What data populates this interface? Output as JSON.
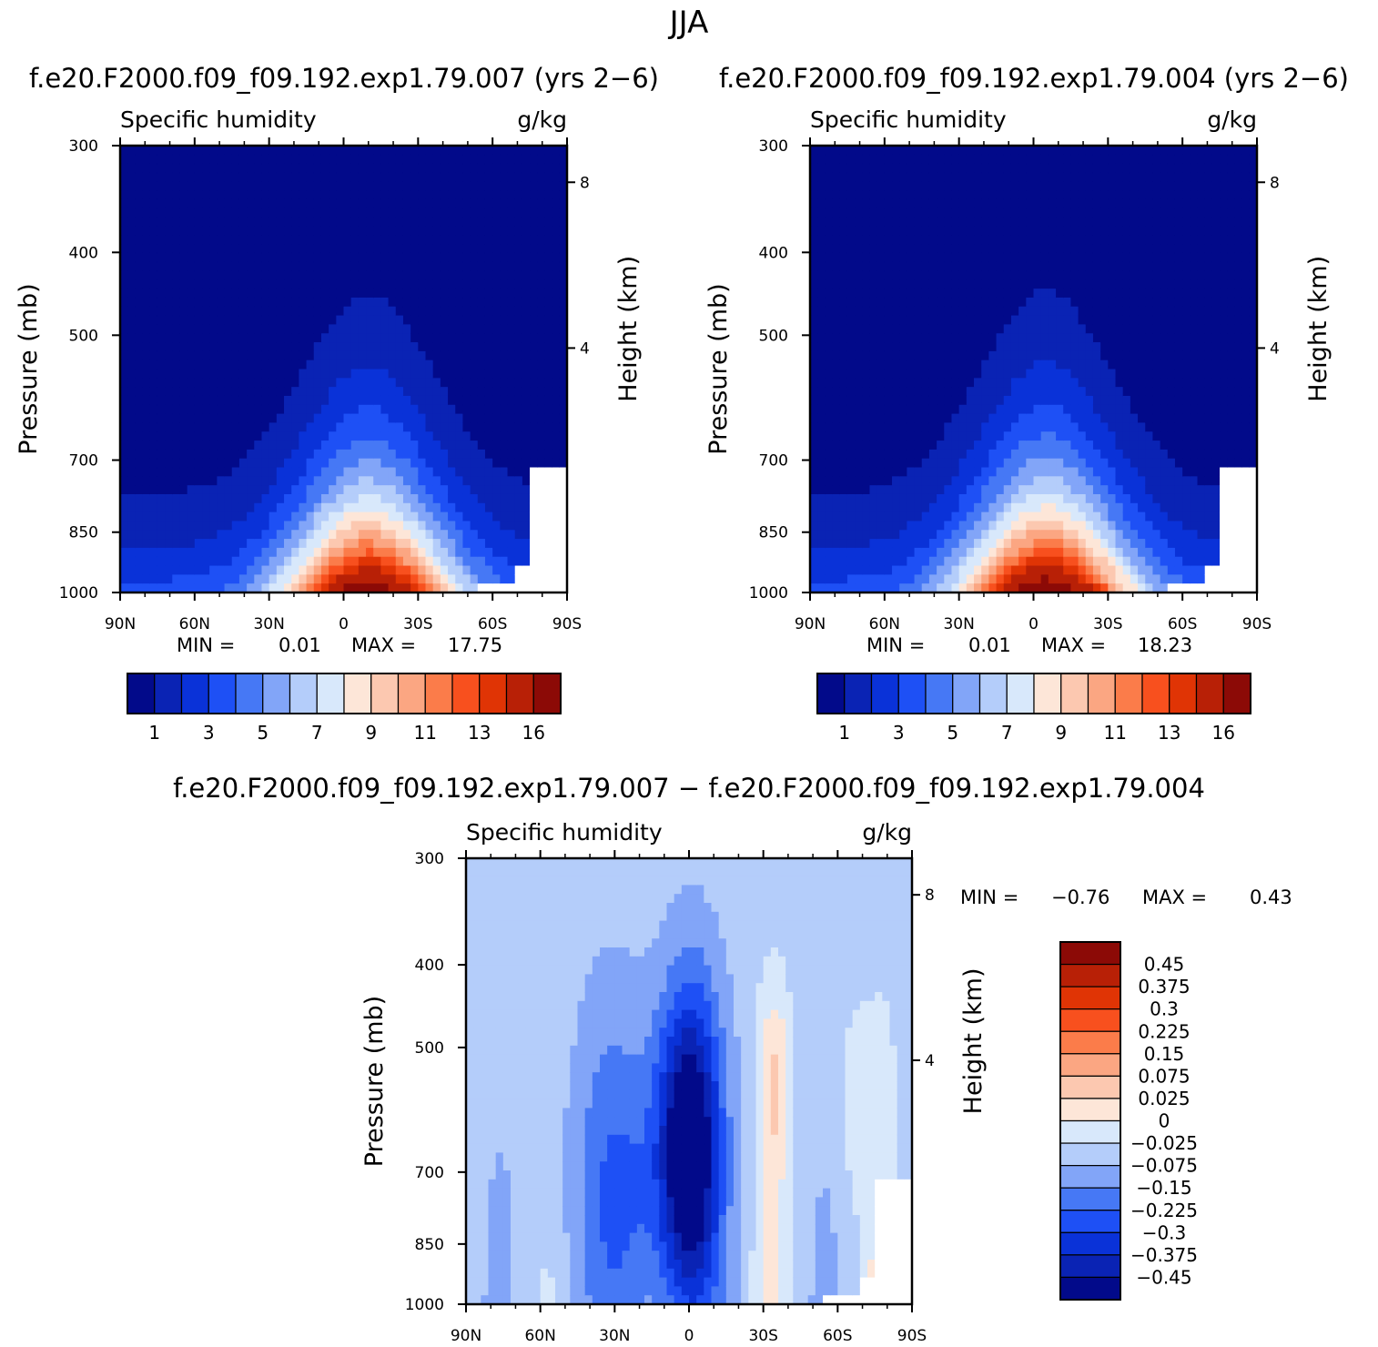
{
  "figure": {
    "season_title": "JJA"
  },
  "chart_data": [
    {
      "id": "panel_a",
      "type": "heatmap",
      "title": "f.e20.F2000.f09_f09.192.exp1.79.007 (yrs 2−6)",
      "left_label": "Specific humidity",
      "right_label": "g/kg",
      "xlabel": "",
      "ylabel": "Pressure (mb)",
      "y2label": "Height (km)",
      "x_ticks": [
        "90N",
        "60N",
        "30N",
        "0",
        "30S",
        "60S",
        "90S"
      ],
      "x_range": [
        90,
        -90
      ],
      "y_ticks": [
        "300",
        "400",
        "500",
        "700",
        "850",
        "1000"
      ],
      "y_tick_values": [
        300,
        400,
        500,
        700,
        850,
        1000
      ],
      "y2_ticks": [
        "8",
        "4"
      ],
      "min_label": "MIN =",
      "min_value": "0.01",
      "max_label": "MAX =",
      "max_value": "17.75",
      "peak_value": 17.75,
      "peak_lat": -10,
      "colorbar_labels": [
        "1",
        "3",
        "5",
        "7",
        "9",
        "11",
        "13",
        "16"
      ]
    },
    {
      "id": "panel_b",
      "type": "heatmap",
      "title": "f.e20.F2000.f09_f09.192.exp1.79.004 (yrs 2−6)",
      "left_label": "Specific humidity",
      "right_label": "g/kg",
      "xlabel": "",
      "ylabel": "Pressure (mb)",
      "y2label": "Height (km)",
      "x_ticks": [
        "90N",
        "60N",
        "30N",
        "0",
        "30S",
        "60S",
        "90S"
      ],
      "x_range": [
        90,
        -90
      ],
      "y_ticks": [
        "300",
        "400",
        "500",
        "700",
        "850",
        "1000"
      ],
      "y_tick_values": [
        300,
        400,
        500,
        700,
        850,
        1000
      ],
      "y2_ticks": [
        "8",
        "4"
      ],
      "min_label": "MIN =",
      "min_value": "0.01",
      "max_label": "MAX =",
      "max_value": "18.23",
      "peak_value": 18.23,
      "peak_lat": -5,
      "colorbar_labels": [
        "1",
        "3",
        "5",
        "7",
        "9",
        "11",
        "13",
        "16"
      ]
    },
    {
      "id": "panel_diff",
      "type": "heatmap",
      "title": "f.e20.F2000.f09_f09.192.exp1.79.007 − f.e20.F2000.f09_f09.192.exp1.79.004",
      "left_label": "Specific humidity",
      "right_label": "g/kg",
      "xlabel": "",
      "ylabel": "Pressure (mb)",
      "y2label": "Height (km)",
      "x_ticks": [
        "90N",
        "60N",
        "30N",
        "0",
        "30S",
        "60S",
        "90S"
      ],
      "x_range": [
        90,
        -90
      ],
      "y_ticks": [
        "300",
        "400",
        "500",
        "700",
        "850",
        "1000"
      ],
      "y_tick_values": [
        300,
        400,
        500,
        700,
        850,
        1000
      ],
      "y2_ticks": [
        "8",
        "4"
      ],
      "min_label": "MIN =",
      "min_value": "−0.76",
      "max_label": "MAX =",
      "max_value": "0.43",
      "colorbar_labels": [
        "0.45",
        "0.375",
        "0.3",
        "0.225",
        "0.15",
        "0.075",
        "0.025",
        "0",
        "−0.025",
        "−0.075",
        "−0.15",
        "−0.225",
        "−0.3",
        "−0.375",
        "−0.45"
      ]
    }
  ],
  "palette": {
    "q_levels": [
      "#020a8a",
      "#0a23b4",
      "#0a32d8",
      "#1e50f5",
      "#4678f5",
      "#82a5f8",
      "#b4cdfa",
      "#d8e8fb",
      "#fde6d8",
      "#fcc8b0",
      "#fba682",
      "#fb7c4a",
      "#f8501e",
      "#e03405",
      "#b82006",
      "#8c0a06"
    ],
    "diff_levels": [
      "#020a8a",
      "#0a23b4",
      "#0a32d8",
      "#1e50f5",
      "#4678f5",
      "#82a5f8",
      "#b4cdfa",
      "#d8e8fb",
      "#fde6d8",
      "#fcc8b0",
      "#fba682",
      "#fb7c4a",
      "#f8501e",
      "#e03405",
      "#b82006",
      "#8c0a06"
    ],
    "no_data": "#ffffff"
  }
}
